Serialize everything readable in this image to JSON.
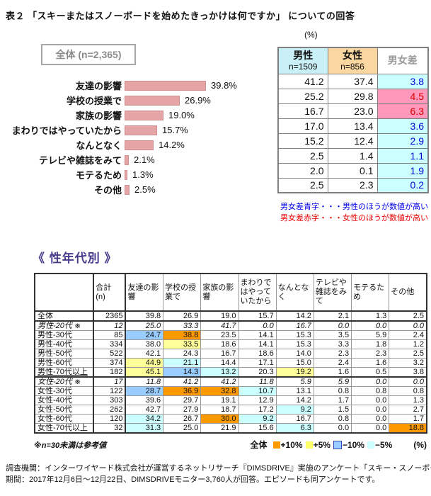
{
  "page": {
    "title": "表２ 「スキーまたはスノーボードを始めたきっかけは何ですか」 についての回答"
  },
  "chart_data": [
    {
      "type": "bar",
      "title": "全体 (n=2,365)",
      "orientation": "horizontal",
      "categories": [
        "友達の影響",
        "学校の授業で",
        "家族の影響",
        "まわりではやっていたから",
        "なんとなく",
        "テレビや雑誌をみて",
        "モテるため",
        "その他"
      ],
      "values": [
        39.8,
        26.9,
        19.0,
        15.7,
        14.2,
        2.1,
        1.3,
        2.5
      ],
      "value_labels": [
        "39.8%",
        "26.9%",
        "19.0%",
        "15.7%",
        "14.2%",
        "2.1%",
        "1.3%",
        "2.5%"
      ],
      "bar_color": "#e5a4a6",
      "xlim": [
        0,
        45
      ],
      "grid": false
    },
    {
      "type": "table",
      "unit": "(%)",
      "columns": [
        {
          "label": "男性",
          "sub": "n=1509",
          "bg": "#c9f0f6"
        },
        {
          "label": "女性",
          "sub": "n=856",
          "bg": "#fad7a0"
        },
        {
          "label": "男女差",
          "sub": "",
          "bg": "#ffffff"
        }
      ],
      "rows": [
        {
          "male": "41.2",
          "female": "37.4",
          "diff": "3.8",
          "diff_dir": "male"
        },
        {
          "male": "25.2",
          "female": "29.8",
          "diff": "4.5",
          "diff_dir": "female"
        },
        {
          "male": "16.7",
          "female": "23.0",
          "diff": "6.3",
          "diff_dir": "female"
        },
        {
          "male": "17.0",
          "female": "13.4",
          "diff": "3.6",
          "diff_dir": "male"
        },
        {
          "male": "15.2",
          "female": "12.4",
          "diff": "2.9",
          "diff_dir": "male"
        },
        {
          "male": "2.5",
          "female": "1.4",
          "diff": "1.1",
          "diff_dir": "male"
        },
        {
          "male": "2.0",
          "female": "0.1",
          "diff": "1.9",
          "diff_dir": "male"
        },
        {
          "male": "2.5",
          "female": "2.3",
          "diff": "0.2",
          "diff_dir": "male"
        }
      ],
      "diff_colors": {
        "male_higher_bg": "#ccffff",
        "male_higher_text": "#0000dd",
        "female_higher_bg": "#ff99bb",
        "female_higher_text": "#dd0000"
      },
      "note_blue": "男女差青字・・・男性のほうが数値が高い",
      "note_red": "男女差赤字・・・女性のほうが数値が高い"
    },
    {
      "type": "table",
      "title": "《 性年代別 》",
      "columns": [
        "",
        "合計\n(n)",
        "友達の影響",
        "学校の授業で",
        "家族の影響",
        "まわりではやっていたから",
        "なんとなく",
        "テレビや雑誌をみて",
        "モテるため",
        "その他"
      ],
      "rows": [
        {
          "label": "全体",
          "n": "2365",
          "values": [
            "39.8",
            "26.9",
            "19.0",
            "15.7",
            "14.2",
            "2.1",
            "1.3",
            "2.5"
          ],
          "hl": [
            "",
            "",
            "",
            "",
            "",
            "",
            "",
            ""
          ],
          "italic": false,
          "section": false,
          "u": false
        },
        {
          "label": "男性-20代 ※",
          "n": "12",
          "values": [
            "25.0",
            "33.3",
            "41.7",
            "0.0",
            "16.7",
            "0.0",
            "0.0",
            "0.0"
          ],
          "hl": [
            "",
            "",
            "",
            "",
            "",
            "",
            "",
            ""
          ],
          "italic": true,
          "section": true,
          "u": false
        },
        {
          "label": "男性-30代",
          "n": "85",
          "values": [
            "24.7",
            "38.8",
            "23.5",
            "14.1",
            "15.3",
            "3.5",
            "5.9",
            "2.4"
          ],
          "hl": [
            "b",
            "o",
            "",
            "",
            "",
            "",
            "",
            ""
          ],
          "italic": false,
          "section": false,
          "u": false
        },
        {
          "label": "男性-40代",
          "n": "334",
          "values": [
            "38.0",
            "33.5",
            "18.6",
            "14.1",
            "15.3",
            "3.3",
            "1.8",
            "1.2"
          ],
          "hl": [
            "",
            "y",
            "",
            "",
            "",
            "",
            "",
            ""
          ],
          "italic": false,
          "section": false,
          "u": false
        },
        {
          "label": "男性-50代",
          "n": "522",
          "values": [
            "42.1",
            "24.3",
            "16.7",
            "18.6",
            "14.0",
            "2.3",
            "2.3",
            "2.5"
          ],
          "hl": [
            "",
            "",
            "",
            "",
            "",
            "",
            "",
            ""
          ],
          "italic": false,
          "section": false,
          "u": false
        },
        {
          "label": "男性-60代",
          "n": "374",
          "values": [
            "44.9",
            "21.1",
            "14.4",
            "17.1",
            "15.0",
            "2.4",
            "1.6",
            "3.2"
          ],
          "hl": [
            "y",
            "c",
            "",
            "",
            "",
            "",
            "",
            ""
          ],
          "italic": false,
          "section": false,
          "u": false
        },
        {
          "label": "男性-70代以上",
          "n": "182",
          "values": [
            "45.1",
            "14.3",
            "13.2",
            "20.3",
            "19.2",
            "1.6",
            "0.5",
            "3.8"
          ],
          "hl": [
            "y",
            "b",
            "c",
            "",
            "y",
            "",
            "",
            ""
          ],
          "italic": false,
          "section": false,
          "u": true
        },
        {
          "label": "女性-20代 ※",
          "n": "17",
          "values": [
            "11.8",
            "41.2",
            "41.2",
            "11.8",
            "5.9",
            "5.9",
            "0.0",
            "0.0"
          ],
          "hl": [
            "",
            "",
            "",
            "",
            "",
            "",
            "",
            ""
          ],
          "italic": true,
          "section": true,
          "u": false
        },
        {
          "label": "女性-30代",
          "n": "122",
          "values": [
            "28.7",
            "36.9",
            "32.8",
            "10.7",
            "13.1",
            "0.8",
            "0.8",
            "0.8"
          ],
          "hl": [
            "b",
            "o",
            "o",
            "c",
            "",
            "",
            "",
            ""
          ],
          "italic": false,
          "section": false,
          "u": false
        },
        {
          "label": "女性-40代",
          "n": "303",
          "values": [
            "39.6",
            "29.7",
            "19.1",
            "12.9",
            "14.2",
            "1.7",
            "0.0",
            "1.3"
          ],
          "hl": [
            "",
            "",
            "",
            "",
            "",
            "",
            "",
            ""
          ],
          "italic": false,
          "section": false,
          "u": false
        },
        {
          "label": "女性-50代",
          "n": "262",
          "values": [
            "42.7",
            "27.9",
            "18.7",
            "17.2",
            "9.2",
            "1.5",
            "0.0",
            "2.7"
          ],
          "hl": [
            "",
            "",
            "",
            "",
            "c",
            "",
            "",
            ""
          ],
          "italic": false,
          "section": false,
          "u": false
        },
        {
          "label": "女性-60代",
          "n": "120",
          "values": [
            "34.2",
            "26.7",
            "30.0",
            "9.2",
            "16.7",
            "0.8",
            "0.0",
            "1.7"
          ],
          "hl": [
            "c",
            "",
            "o",
            "c",
            "",
            "",
            "",
            ""
          ],
          "italic": false,
          "section": false,
          "u": false
        },
        {
          "label": "女性-70代以上",
          "n": "32",
          "values": [
            "31.3",
            "25.0",
            "21.9",
            "15.6",
            "6.3",
            "0.0",
            "0.0",
            "18.8"
          ],
          "hl": [
            "c",
            "",
            "",
            "",
            "c",
            "",
            "",
            "o"
          ],
          "italic": false,
          "section": false,
          "u": false
        }
      ],
      "highlight_colors": {
        "o": "#ff9900",
        "y": "#ffff99",
        "b": "#99ccff",
        "c": "#ccffff"
      },
      "footnote": "※n=30未満は参考値",
      "legend": {
        "prefix": "全体",
        "items": [
          {
            "label": "+10%",
            "color": "#ff9900"
          },
          {
            "label": "+5%",
            "color": "#ffff66"
          },
          {
            "label": "−10%",
            "color": "#99ccff",
            "border": "#3344bb"
          },
          {
            "label": "−5%",
            "color": "#ccffff"
          }
        ],
        "suffix": "(%)"
      }
    }
  ],
  "footer": {
    "line1": "調査機関：インターワイヤード株式会社が運営するネットリサーチ『DIMSDRIVE』実施のアンケート「スキー・スノーボード」。",
    "line2": "期間：2017年12月6日～12月22日、DIMSDRIVEモニター3,760人が回答。エピソードも同アンケートです。"
  }
}
